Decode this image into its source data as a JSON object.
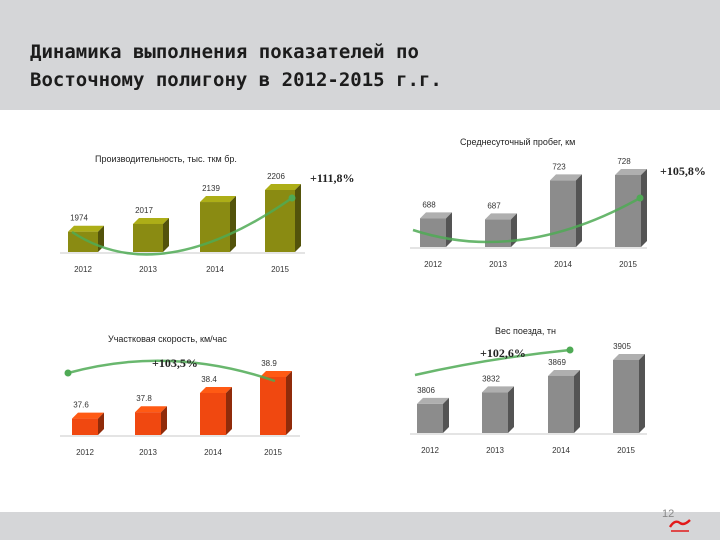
{
  "slide": {
    "title": "Динамика выполнения показателей по\nВосточному полигону в 2012-2015 г.г.",
    "page_number": "12",
    "logo_text": "РЖД"
  },
  "colors": {
    "olive": "#8a8b12",
    "gray": "#8c8c8c",
    "red": "#f04810",
    "arrow": "#4faa55"
  },
  "chart_data": [
    {
      "type": "bar",
      "title": "Производительность, тыс. ткм бр.",
      "categories": [
        "2012",
        "2013",
        "2014",
        "2015"
      ],
      "values": [
        1974,
        2017,
        2139,
        2206
      ],
      "value_labels": [
        "1974",
        "2017",
        "2139",
        "2206"
      ],
      "growth_label": "+111,8%",
      "color": "olive"
    },
    {
      "type": "bar",
      "title": "Среднесуточный пробег, км",
      "categories": [
        "2012",
        "2013",
        "2014",
        "2015"
      ],
      "values": [
        688,
        687,
        723,
        728
      ],
      "value_labels": [
        "688",
        "687",
        "723",
        "728"
      ],
      "growth_label": "+105,8%",
      "color": "gray"
    },
    {
      "type": "bar",
      "title": "Участковая скорость, км/час",
      "categories": [
        "2012",
        "2013",
        "2014",
        "2015"
      ],
      "values": [
        37.6,
        37.8,
        38.4,
        38.9
      ],
      "value_labels": [
        "37.6",
        "37.8",
        "38.4",
        "38.9"
      ],
      "growth_label": "+103,5%",
      "color": "red"
    },
    {
      "type": "bar",
      "title": "Вес поезда, тн",
      "categories": [
        "2012",
        "2013",
        "2014",
        "2015"
      ],
      "values": [
        3806,
        3832,
        3869,
        3905
      ],
      "value_labels": [
        "3806",
        "3832",
        "3869",
        "3905"
      ],
      "growth_label": "+102,6%",
      "color": "gray"
    }
  ]
}
